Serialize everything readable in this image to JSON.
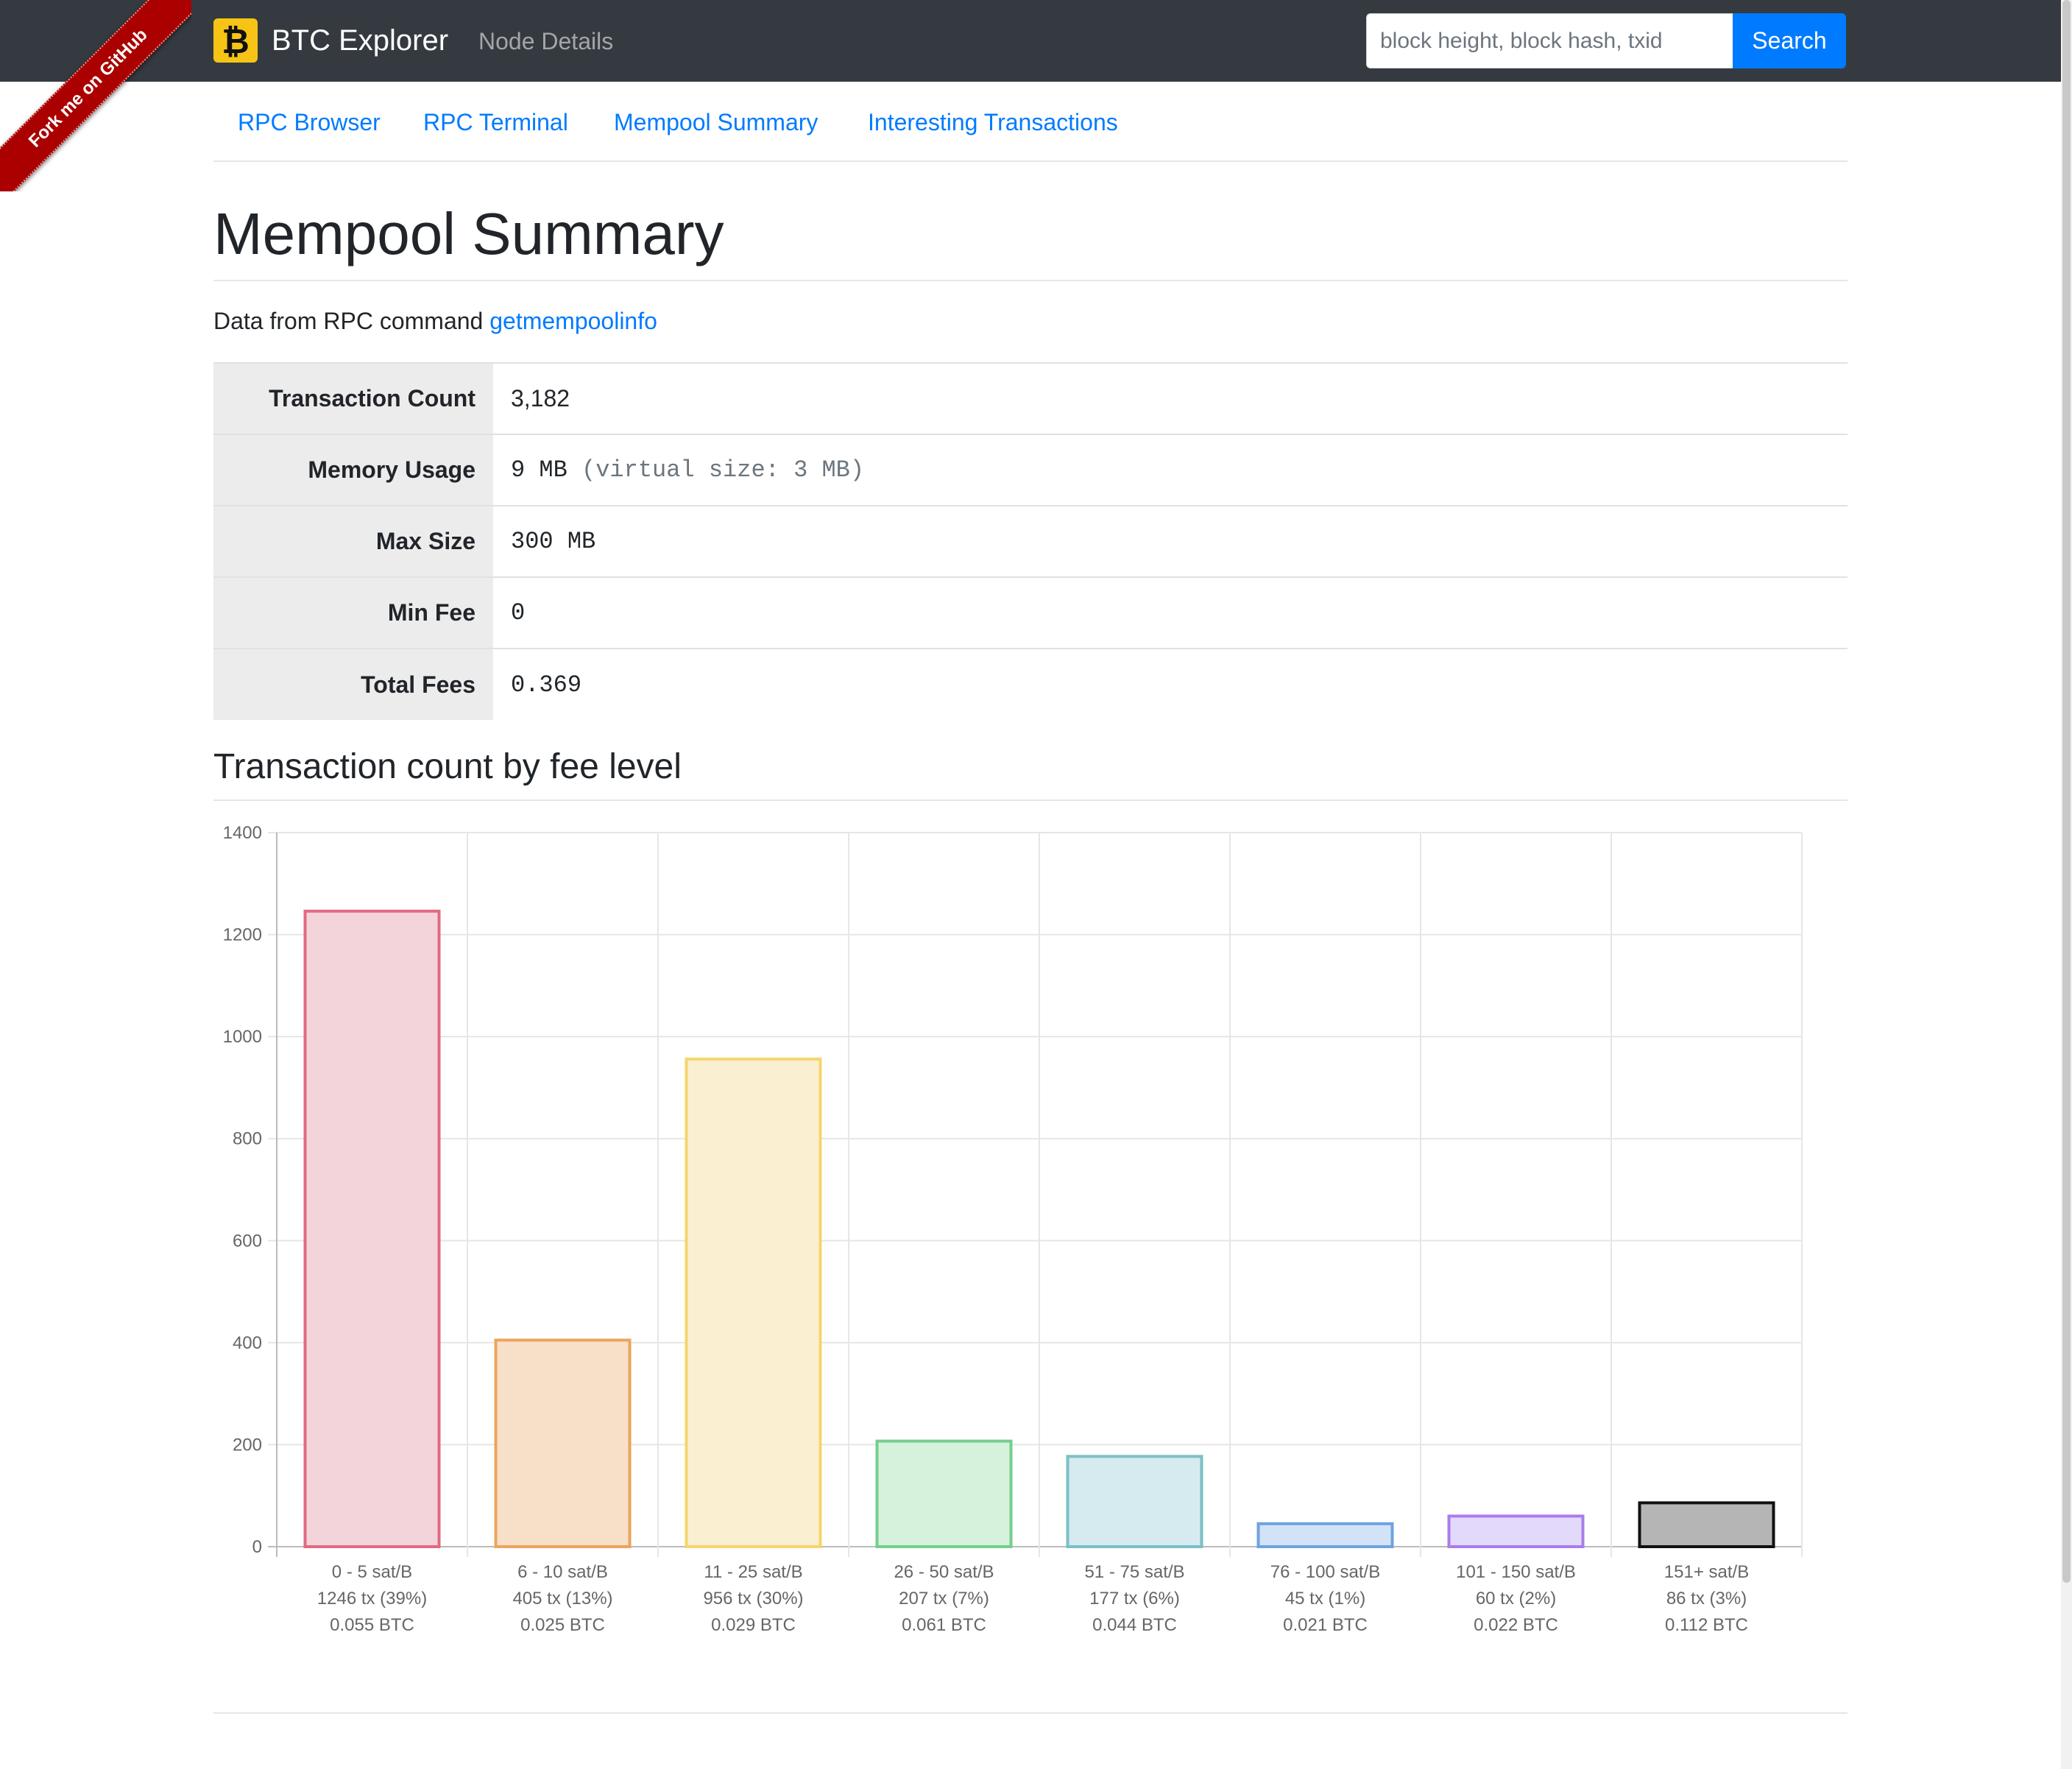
{
  "navbar": {
    "brand": "BTC Explorer",
    "brand_icon": "bitcoin-icon",
    "node_details": "Node Details",
    "search_placeholder": "block height, block hash, txid",
    "search_label": "Search"
  },
  "ribbon": {
    "text": "Fork me on GitHub"
  },
  "subnav": {
    "items": [
      "RPC Browser",
      "RPC Terminal",
      "Mempool Summary",
      "Interesting Transactions"
    ]
  },
  "page": {
    "title": "Mempool Summary",
    "data_from_prefix": "Data from RPC command",
    "data_from_link": "getmempoolinfo"
  },
  "summary": {
    "rows": [
      {
        "label": "Transaction Count",
        "value": "3,182",
        "extra": ""
      },
      {
        "label": "Memory Usage",
        "value": "9 MB",
        "extra": "(virtual size: 3 MB)"
      },
      {
        "label": "Max Size",
        "value": "300 MB",
        "extra": ""
      },
      {
        "label": "Min Fee",
        "value": "0",
        "extra": ""
      },
      {
        "label": "Total Fees",
        "value": "0.369",
        "extra": ""
      }
    ]
  },
  "chart_section_title": "Transaction count by fee level",
  "chart_data": {
    "type": "bar",
    "title": "",
    "xlabel": "",
    "ylabel": "",
    "ylim": [
      0,
      1400
    ],
    "yticks": [
      "0",
      "200",
      "400",
      "600",
      "800",
      "1000",
      "1200",
      "1400"
    ],
    "grid": true,
    "categories": [
      [
        "0 - 5 sat/B",
        "1246 tx (39%)",
        "0.055 BTC"
      ],
      [
        "6 - 10 sat/B",
        "405 tx (13%)",
        "0.025 BTC"
      ],
      [
        "11 - 25 sat/B",
        "956 tx (30%)",
        "0.029 BTC"
      ],
      [
        "26 - 50 sat/B",
        "207 tx (7%)",
        "0.061 BTC"
      ],
      [
        "51 - 75 sat/B",
        "177 tx (6%)",
        "0.044 BTC"
      ],
      [
        "76 - 100 sat/B",
        "45 tx (1%)",
        "0.021 BTC"
      ],
      [
        "101 - 150 sat/B",
        "60 tx (2%)",
        "0.022 BTC"
      ],
      [
        "151+ sat/B",
        "86 tx (3%)",
        "0.112 BTC"
      ]
    ],
    "values": [
      1246,
      405,
      956,
      207,
      177,
      45,
      60,
      86
    ],
    "fill_colors": [
      "#f4d4db",
      "#f8e0c8",
      "#fbefd1",
      "#d6f1dc",
      "#d6ebef",
      "#d3e3f7",
      "#e3d9fb",
      "#b5b5b5"
    ],
    "border_colors": [
      "#e16a83",
      "#eba55c",
      "#f5d56c",
      "#74cf8c",
      "#7bbfc6",
      "#6ea2e1",
      "#a97cea",
      "#111111"
    ]
  }
}
